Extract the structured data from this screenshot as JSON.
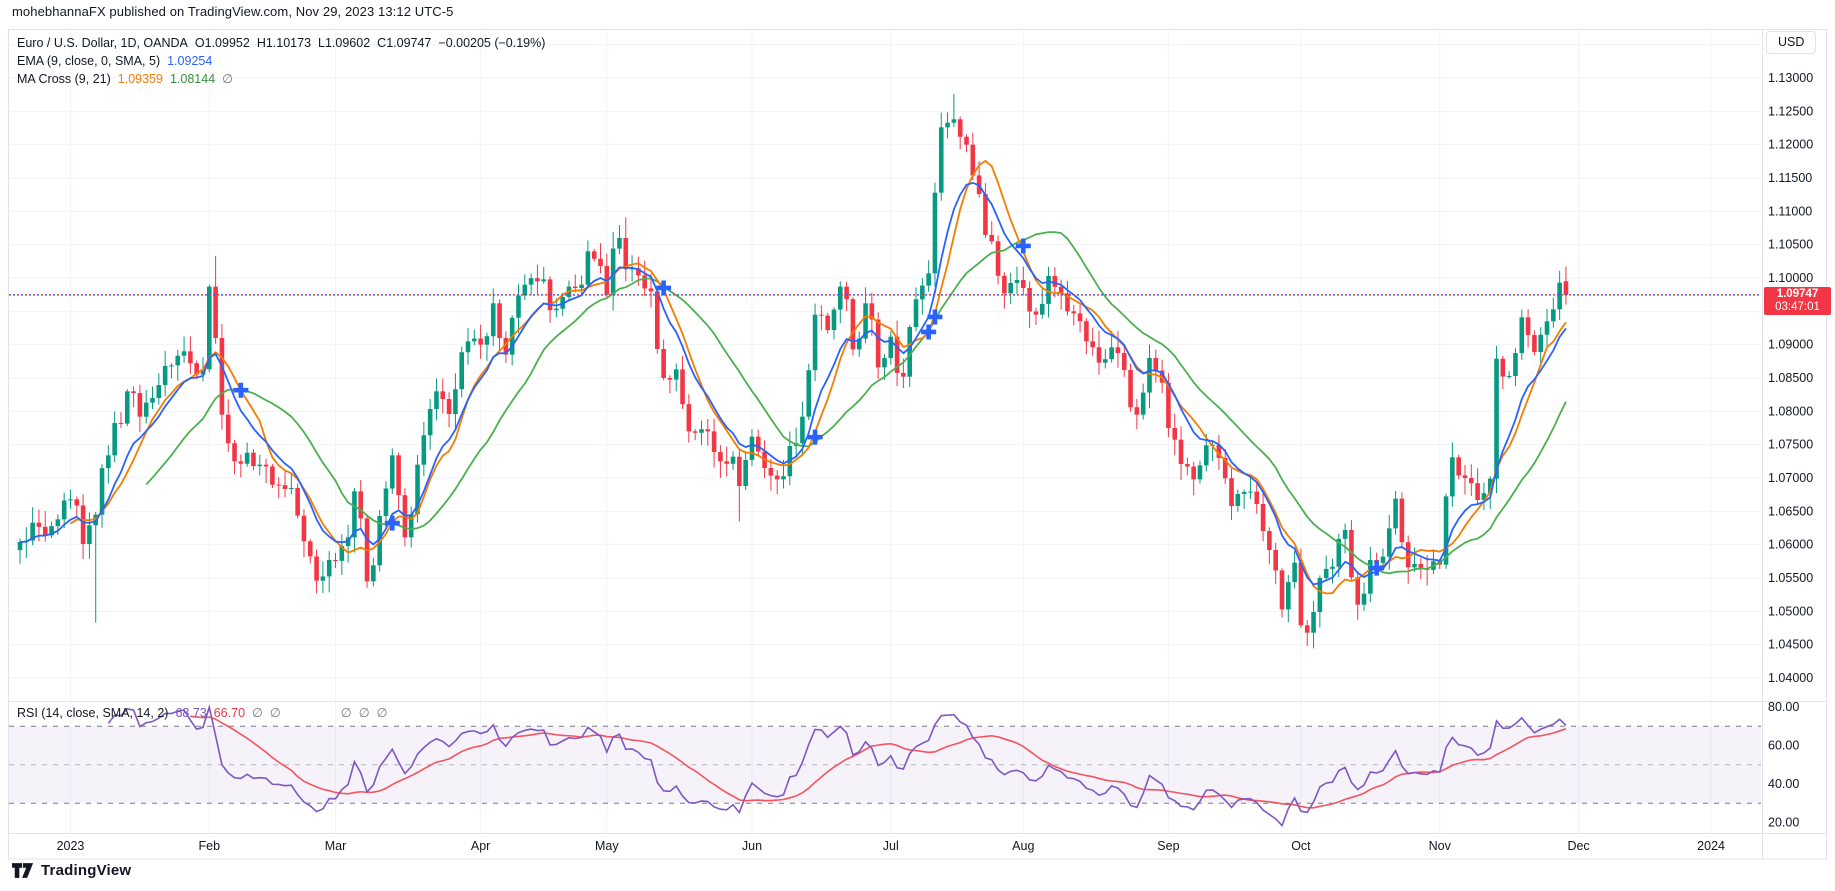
{
  "credit": "mohebhannaFX published on TradingView.com, Nov 29, 2023 13:12 UTC-5",
  "currency_button": "USD",
  "footer": {
    "logo_text": "TradingView"
  },
  "legend": {
    "symbol_row": {
      "title": "Euro / U.S. Dollar, 1D, OANDA",
      "open": "O1.09952",
      "high": "H1.10173",
      "low": "L1.09602",
      "close": "C1.09747",
      "change": "−0.00205 (−0.19%)"
    },
    "ema_row": {
      "label": "EMA (9, close, 0, SMA, 5)",
      "value": "1.09254"
    },
    "macross_row": {
      "label": "MA Cross (9, 21)",
      "fast_value": "1.09359",
      "slow_value": "1.08144",
      "cross_value": "∅"
    },
    "rsi_row": {
      "label": "RSI (14, close, SMA, 14, 2)",
      "rsi_value": "68.73",
      "rsi_ma_value": "66.70",
      "crosses": [
        "∅",
        "∅"
      ],
      "crosses2": [
        "∅",
        "∅",
        "∅"
      ]
    }
  },
  "price_axis": {
    "labels": [
      "1.13000",
      "1.12500",
      "1.12000",
      "1.11500",
      "1.11000",
      "1.10500",
      "1.10000",
      "1.09000",
      "1.08500",
      "1.08000",
      "1.07500",
      "1.07000",
      "1.06500",
      "1.06000",
      "1.05500",
      "1.05000",
      "1.04500",
      "1.04000"
    ],
    "last_price": "1.09747",
    "countdown": "03:47:01",
    "badge_color": "#F23645"
  },
  "rsi_axis": {
    "labels": [
      "80.00",
      "60.00",
      "40.00",
      "20.00"
    ]
  },
  "time_axis": {
    "labels": [
      {
        "text": "2023",
        "i": 8
      },
      {
        "text": "Feb",
        "i": 30
      },
      {
        "text": "Mar",
        "i": 50
      },
      {
        "text": "Apr",
        "i": 73
      },
      {
        "text": "May",
        "i": 93
      },
      {
        "text": "Jun",
        "i": 116
      },
      {
        "text": "Jul",
        "i": 138
      },
      {
        "text": "Aug",
        "i": 159
      },
      {
        "text": "Sep",
        "i": 182
      },
      {
        "text": "Oct",
        "i": 203
      },
      {
        "text": "Nov",
        "i": 225
      },
      {
        "text": "Dec",
        "i": 247
      },
      {
        "text": "2024",
        "i": 268
      }
    ]
  },
  "chart_data": {
    "type": "candlestick",
    "title": "Euro / U.S. Dollar, 1D, OANDA",
    "price_axis_range": [
      1.04,
      1.13
    ],
    "price_axis_step": 0.005,
    "rsi_axis_range": [
      20,
      80
    ],
    "rsi_levels": {
      "upper": 70,
      "middle": 50,
      "lower": 30
    },
    "num_candles": 246,
    "last_candle": {
      "o": 1.09952,
      "h": 1.10173,
      "l": 1.09602,
      "c": 1.09747
    },
    "anchors": [
      [
        0,
        1.0604
      ],
      [
        2,
        1.0633
      ],
      [
        4,
        1.0614
      ],
      [
        6,
        1.0638
      ],
      [
        8,
        1.0668
      ],
      [
        10,
        1.0601
      ],
      [
        12,
        1.0645
      ],
      [
        14,
        1.0734
      ],
      [
        17,
        1.083
      ],
      [
        19,
        1.0792
      ],
      [
        21,
        1.082
      ],
      [
        23,
        1.0868
      ],
      [
        26,
        1.089
      ],
      [
        28,
        1.0855
      ],
      [
        29,
        1.0863
      ],
      [
        30,
        1.0987
      ],
      [
        31,
        1.091
      ],
      [
        32,
        1.0795
      ],
      [
        34,
        1.0725
      ],
      [
        36,
        1.0738
      ],
      [
        38,
        1.072
      ],
      [
        40,
        1.069
      ],
      [
        43,
        1.0685
      ],
      [
        45,
        1.0605
      ],
      [
        47,
        1.0546
      ],
      [
        49,
        1.0577
      ],
      [
        51,
        1.0598
      ],
      [
        53,
        1.068
      ],
      [
        55,
        1.0545
      ],
      [
        57,
        1.0643
      ],
      [
        59,
        1.0734
      ],
      [
        61,
        1.0611
      ],
      [
        63,
        1.072
      ],
      [
        66,
        1.083
      ],
      [
        68,
        1.0796
      ],
      [
        71,
        1.0905
      ],
      [
        73,
        1.09
      ],
      [
        75,
        1.0962
      ],
      [
        77,
        1.0885
      ],
      [
        80,
        1.099
      ],
      [
        82,
        1.0995
      ],
      [
        85,
        1.0954
      ],
      [
        88,
        1.0985
      ],
      [
        90,
        1.104
      ],
      [
        92,
        1.1018
      ],
      [
        93,
        1.0975
      ],
      [
        95,
        1.106
      ],
      [
        96,
        1.1013
      ],
      [
        98,
        1.1004
      ],
      [
        100,
        1.098
      ],
      [
        102,
        1.085
      ],
      [
        104,
        1.0863
      ],
      [
        106,
        1.077
      ],
      [
        109,
        1.077
      ],
      [
        111,
        1.0725
      ],
      [
        113,
        1.0732
      ],
      [
        114,
        1.0688
      ],
      [
        116,
        1.0762
      ],
      [
        118,
        1.0715
      ],
      [
        120,
        1.0698
      ],
      [
        122,
        1.0748
      ],
      [
        124,
        1.0792
      ],
      [
        126,
        1.0945
      ],
      [
        128,
        1.0922
      ],
      [
        130,
        1.0987
      ],
      [
        132,
        1.0893
      ],
      [
        134,
        1.0962
      ],
      [
        136,
        1.0866
      ],
      [
        138,
        1.0912
      ],
      [
        140,
        1.0852
      ],
      [
        142,
        1.0968
      ],
      [
        144,
        1.1007
      ],
      [
        145,
        1.1128
      ],
      [
        146,
        1.1226
      ],
      [
        148,
        1.1238
      ],
      [
        150,
        1.12
      ],
      [
        152,
        1.1126
      ],
      [
        154,
        1.1055
      ],
      [
        156,
        1.0977
      ],
      [
        158,
        1.0997
      ],
      [
        159,
        1.0985
      ],
      [
        161,
        1.0945
      ],
      [
        163,
        1.1003
      ],
      [
        165,
        1.0977
      ],
      [
        167,
        1.0947
      ],
      [
        169,
        1.0905
      ],
      [
        171,
        1.0873
      ],
      [
        173,
        1.0896
      ],
      [
        175,
        1.0862
      ],
      [
        177,
        1.0795
      ],
      [
        179,
        1.088
      ],
      [
        181,
        1.0843
      ],
      [
        182,
        1.0775
      ],
      [
        184,
        1.0721
      ],
      [
        186,
        1.0698
      ],
      [
        188,
        1.0749
      ],
      [
        190,
        1.073
      ],
      [
        192,
        1.0658
      ],
      [
        194,
        1.0679
      ],
      [
        196,
        1.0661
      ],
      [
        198,
        1.0592
      ],
      [
        200,
        1.0503
      ],
      [
        202,
        1.0573
      ],
      [
        203,
        1.0479
      ],
      [
        204,
        1.0468
      ],
      [
        206,
        1.055
      ],
      [
        208,
        1.0567
      ],
      [
        210,
        1.0622
      ],
      [
        212,
        1.051
      ],
      [
        214,
        1.0577
      ],
      [
        216,
        1.0582
      ],
      [
        218,
        1.0669
      ],
      [
        220,
        1.0566
      ],
      [
        222,
        1.0565
      ],
      [
        224,
        1.0575
      ],
      [
        225,
        1.057
      ],
      [
        227,
        1.0731
      ],
      [
        229,
        1.07
      ],
      [
        231,
        1.0667
      ],
      [
        233,
        1.0699
      ],
      [
        234,
        1.0879
      ],
      [
        236,
        1.0853
      ],
      [
        238,
        1.0941
      ],
      [
        240,
        1.0889
      ],
      [
        242,
        1.0935
      ],
      [
        243,
        1.0953
      ],
      [
        244,
        1.0993
      ],
      [
        245,
        1.09747
      ]
    ],
    "wick_overrides": {
      "12": {
        "l": 1.0483
      },
      "30": {
        "h": 1.099
      },
      "31": {
        "h": 1.1033
      },
      "96": {
        "h": 1.1091
      },
      "114": {
        "l": 1.0635
      },
      "148": {
        "h": 1.1276
      },
      "204": {
        "l": 1.0448
      },
      "245": {
        "h": 1.10173,
        "l": 1.09602
      }
    },
    "indicators": {
      "ema": {
        "length": 9,
        "color": "#2962FF",
        "last": 1.09254
      },
      "sma_fast": {
        "length": 9,
        "color": "#F57C00",
        "last": 1.09359
      },
      "sma_slow": {
        "length": 21,
        "color": "#4CAF50",
        "last": 1.08144
      },
      "rsi": {
        "length": 14,
        "color": "#7E57C2",
        "last": 68.73
      },
      "rsi_sma": {
        "length": 14,
        "color": "#F7525F",
        "last": 66.7
      }
    },
    "colors": {
      "up": "#089981",
      "down": "#F23645",
      "cross_marker": "#2962FF",
      "grid": "#F0F3FA",
      "border": "#E0E3EB",
      "axis_text": "#131722",
      "rsi_band_fill": "rgba(126,87,194,0.08)",
      "rsi_level_dash": "#787B86",
      "rsi_mid_dash": "#B2B5BE",
      "last_price_line_a": "#F23645",
      "last_price_line_b": "#2962FF"
    }
  }
}
